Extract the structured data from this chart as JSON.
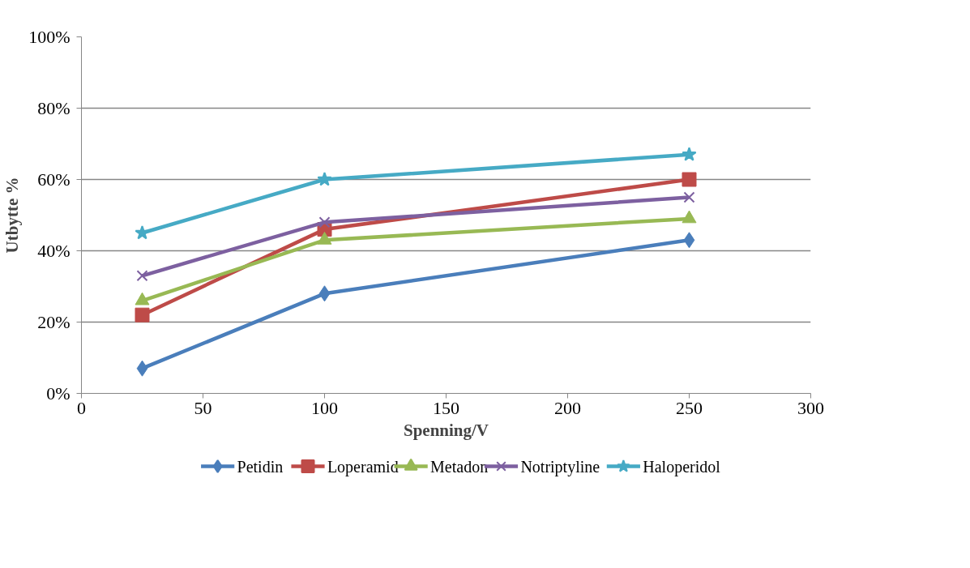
{
  "chart_data": {
    "type": "line",
    "xlabel": "Spenning/V",
    "ylabel": "Utbytte %",
    "x": [
      25,
      100,
      250
    ],
    "xlim": [
      0,
      300
    ],
    "xticks": [
      0,
      50,
      100,
      150,
      200,
      250,
      300
    ],
    "ylim": [
      0,
      100
    ],
    "yticks": [
      {
        "value": 0,
        "label": "0%"
      },
      {
        "value": 20,
        "label": "20%"
      },
      {
        "value": 40,
        "label": "40%"
      },
      {
        "value": 60,
        "label": "60%"
      },
      {
        "value": 80,
        "label": "80%"
      },
      {
        "value": 100,
        "label": "100%"
      }
    ],
    "grid": "y",
    "legend": "bottom",
    "line_style": "solid",
    "series": [
      {
        "name": "Petidin",
        "color": "#4a7ebb",
        "marker": "diamond",
        "values": [
          7,
          28,
          43
        ]
      },
      {
        "name": "Loperamid",
        "color": "#be4b48",
        "marker": "square",
        "values": [
          22,
          46,
          60
        ]
      },
      {
        "name": "Metadon",
        "color": "#98b954",
        "marker": "triangle",
        "values": [
          26,
          43,
          49
        ]
      },
      {
        "name": "Notriptyline",
        "color": "#7d60a0",
        "marker": "cross",
        "values": [
          33,
          48,
          55
        ]
      },
      {
        "name": "Haloperidol",
        "color": "#46aac5",
        "marker": "star",
        "values": [
          45,
          60,
          67
        ]
      }
    ]
  }
}
